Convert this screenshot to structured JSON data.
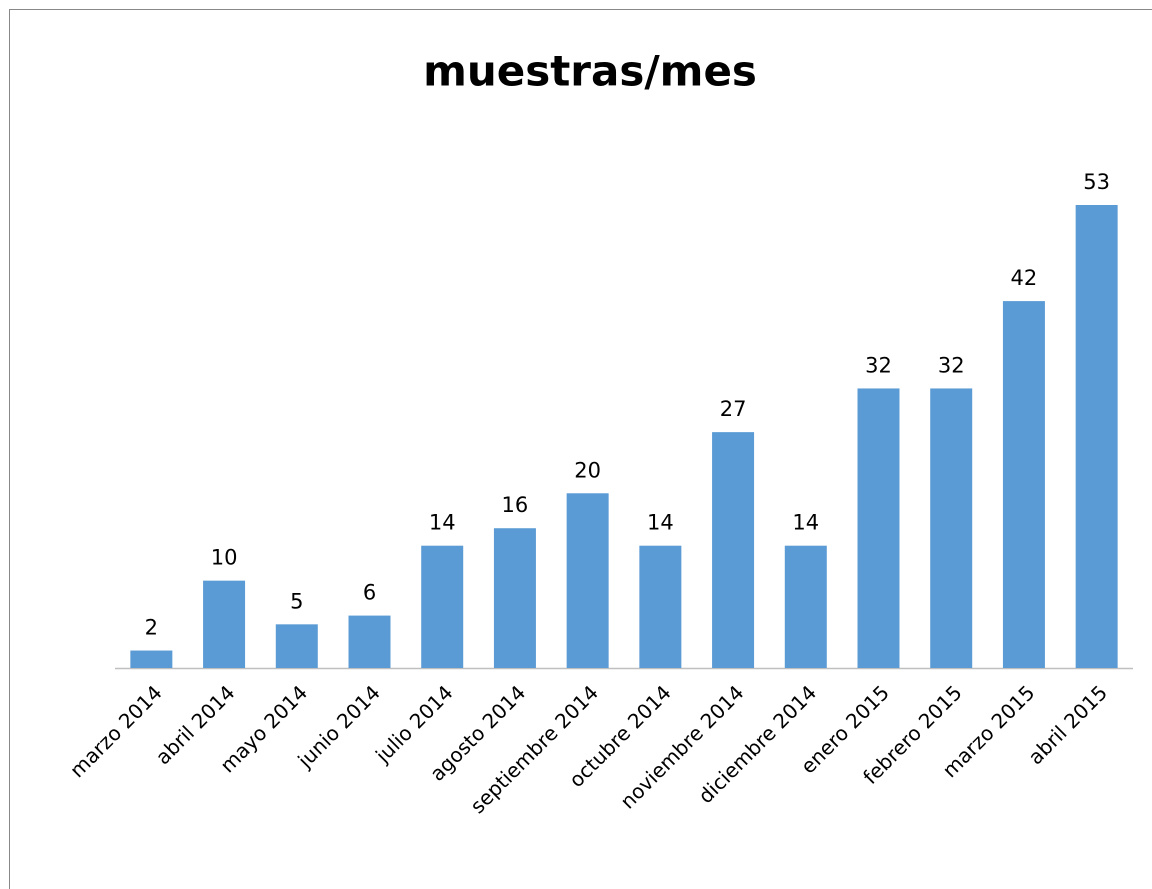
{
  "chart_data": {
    "type": "bar",
    "title": "muestras/mes",
    "categories": [
      "marzo 2014",
      "abril 2014",
      "mayo 2014",
      "junio 2014",
      "julio 2014",
      "agosto 2014",
      "septiembre 2014",
      "octubre 2014",
      "noviembre 2014",
      "diciembre 2014",
      "enero 2015",
      "febrero 2015",
      "marzo 2015",
      "abril 2015"
    ],
    "values": [
      2,
      10,
      5,
      6,
      14,
      16,
      20,
      14,
      27,
      14,
      32,
      32,
      42,
      53
    ],
    "color": "#5b9bd5",
    "grid": false
  }
}
